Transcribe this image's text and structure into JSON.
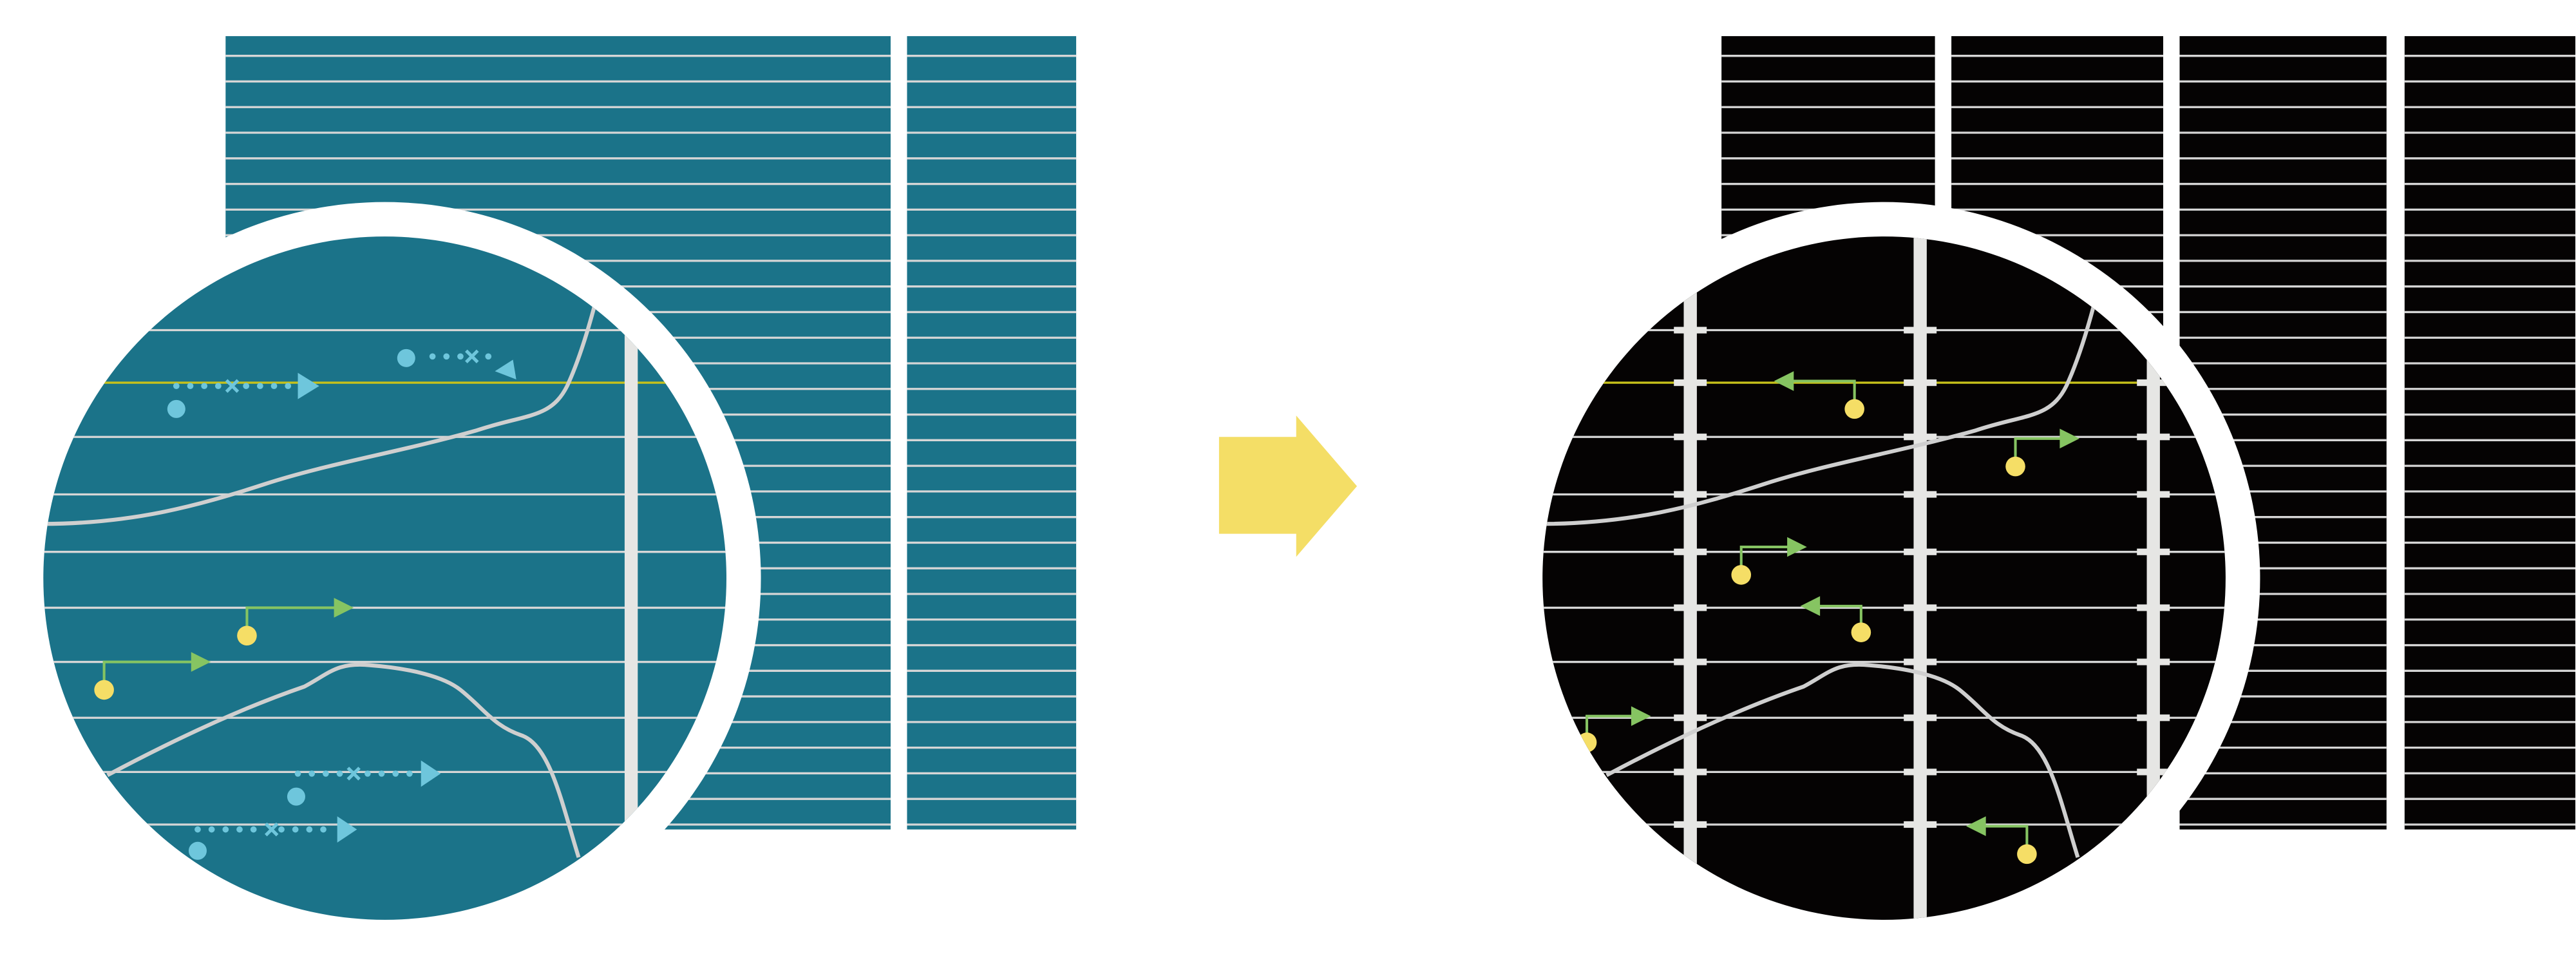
{
  "colors": {
    "teal_field": "#1b7389",
    "black_field": "#050303",
    "grid_line": "#d6d6d6",
    "highlight_line": "#c8c21a",
    "curve": "#cfcfcf",
    "blue_marker": "#6ec6dc",
    "yellow_marker": "#f5de66",
    "green_arrow": "#86c462",
    "arrow": "#f4de66",
    "ring": "#ffffff"
  },
  "icons": {
    "transition_arrow": "right-arrow-icon"
  }
}
